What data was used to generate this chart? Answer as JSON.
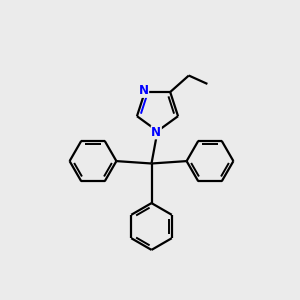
{
  "bg_color": "#ebebeb",
  "bond_color": "#000000",
  "n_color": "#0000ff",
  "fig_size": [
    3.0,
    3.0
  ],
  "dpi": 100,
  "lw": 1.6,
  "lw_inner": 1.4
}
